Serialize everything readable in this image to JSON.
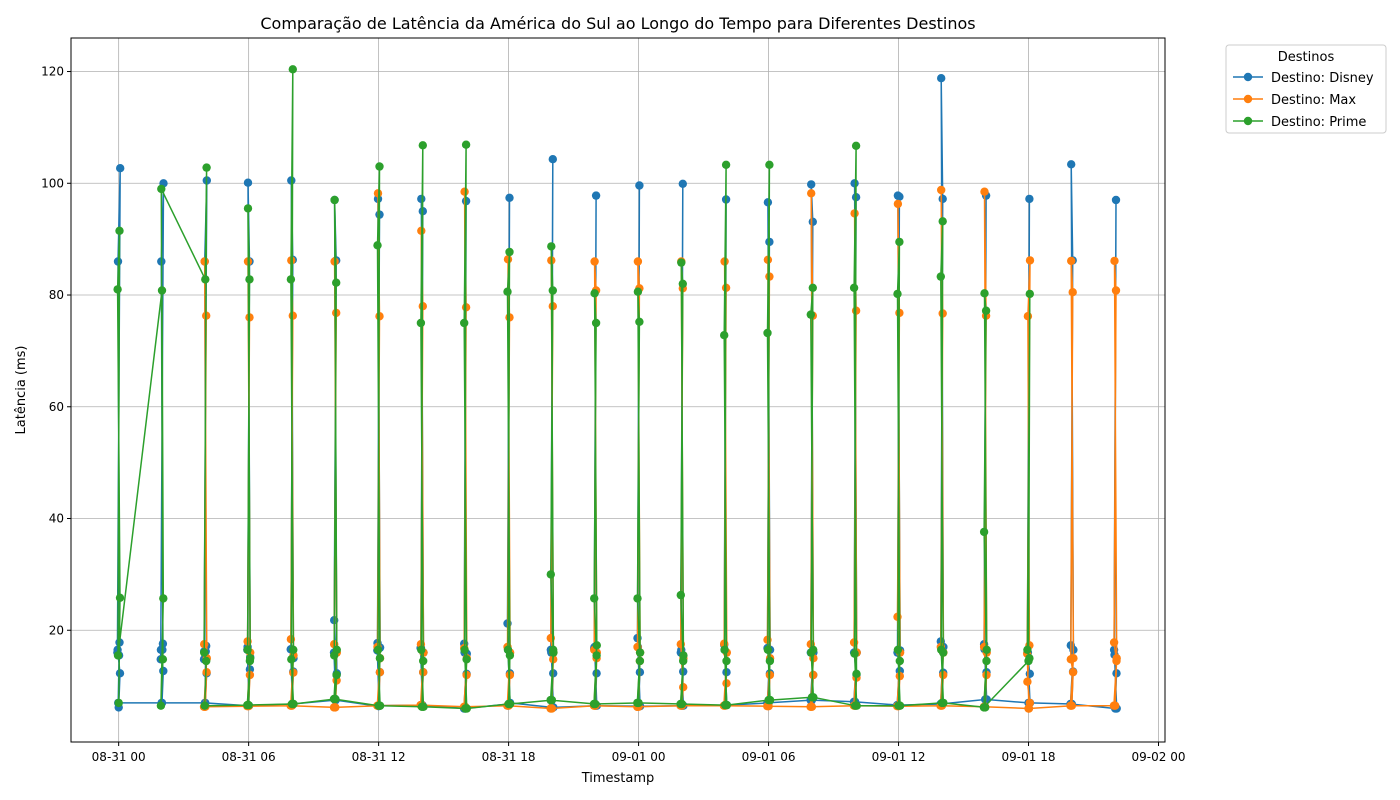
{
  "chart_data": {
    "type": "line",
    "title": "Comparação de Latência da América do Sul ao Longo do Tempo para Diferentes Destinos",
    "xlabel": "Timestamp",
    "ylabel": "Latência (ms)",
    "grid": true,
    "legend": {
      "title": "Destinos",
      "placement": "outside-top-right"
    },
    "x_ticks": [
      {
        "label": "08-31 00",
        "hours": 0
      },
      {
        "label": "08-31 06",
        "hours": 6
      },
      {
        "label": "08-31 12",
        "hours": 12
      },
      {
        "label": "08-31 18",
        "hours": 18
      },
      {
        "label": "09-01 00",
        "hours": 24
      },
      {
        "label": "09-01 06",
        "hours": 30
      },
      {
        "label": "09-01 12",
        "hours": 36
      },
      {
        "label": "09-01 18",
        "hours": 42
      },
      {
        "label": "09-02 00",
        "hours": 48
      }
    ],
    "xlim_hours": [
      -2.2,
      48.3
    ],
    "ylim": [
      0,
      126
    ],
    "y_ticks": [
      20,
      40,
      60,
      80,
      100,
      120
    ],
    "series": [
      {
        "name": "Destino: Disney",
        "color": "#1f77b4",
        "groups": [
          {
            "t": 0.0,
            "values": [
              6.2,
              12.3,
              16.5,
              17.8,
              86.0,
              102.7,
              16.0,
              15.5,
              7.0
            ]
          },
          {
            "t": 2.0,
            "values": [
              7.0,
              12.7,
              16.5,
              17.6,
              86.0,
              100.0,
              14.8,
              16.5,
              7.0
            ]
          },
          {
            "t": 4.0,
            "values": [
              7.0,
              12.3,
              16.2,
              17.2,
              86.0,
              100.5,
              14.8,
              16.2,
              7.0
            ]
          },
          {
            "t": 6.0,
            "values": [
              6.5,
              13.0,
              17.0,
              86.0,
              100.1,
              15.2,
              16.5,
              6.5
            ]
          },
          {
            "t": 8.0,
            "values": [
              6.8,
              12.6,
              16.6,
              86.3,
              100.5,
              15.0,
              16.6,
              6.8
            ]
          },
          {
            "t": 10.0,
            "values": [
              7.5,
              12.0,
              21.8,
              86.2,
              97.0,
              12.3,
              16.0,
              7.5
            ]
          },
          {
            "t": 12.0,
            "values": [
              6.4,
              12.5,
              17.7,
              94.4,
              97.2,
              16.9,
              16.4,
              6.5
            ]
          },
          {
            "t": 14.0,
            "values": [
              6.6,
              12.5,
              16.9,
              95.0,
              97.2,
              16.0,
              16.8,
              6.6
            ]
          },
          {
            "t": 16.0,
            "values": [
              6.0,
              12.2,
              17.6,
              96.8,
              16.0,
              15.8,
              6.0
            ]
          },
          {
            "t": 18.0,
            "values": [
              6.8,
              12.3,
              21.2,
              97.4,
              16.5,
              7.0
            ]
          },
          {
            "t": 20.0,
            "values": [
              6.2,
              12.3,
              16.5,
              104.3,
              16.0,
              6.2
            ]
          },
          {
            "t": 22.0,
            "values": [
              6.5,
              12.3,
              16.8,
              97.8,
              17.0,
              6.5
            ]
          },
          {
            "t": 24.0,
            "values": [
              6.4,
              12.5,
              18.6,
              99.6,
              17.0,
              6.4
            ]
          },
          {
            "t": 26.0,
            "values": [
              6.5,
              12.6,
              16.0,
              99.9,
              16.5,
              6.5
            ]
          },
          {
            "t": 28.0,
            "values": [
              6.6,
              12.5,
              17.4,
              97.1,
              16.5,
              6.6
            ]
          },
          {
            "t": 30.0,
            "values": [
              7.0,
              12.3,
              16.8,
              89.5,
              96.6,
              16.5,
              7.0
            ]
          },
          {
            "t": 32.0,
            "values": [
              7.5,
              12.0,
              16.0,
              93.1,
              99.8,
              16.0,
              7.5
            ]
          },
          {
            "t": 34.0,
            "values": [
              7.2,
              12.0,
              16.0,
              97.5,
              100.0,
              16.0,
              7.2
            ]
          },
          {
            "t": 36.0,
            "values": [
              6.6,
              12.7,
              16.0,
              97.6,
              97.8,
              16.4,
              6.6
            ]
          },
          {
            "t": 38.0,
            "values": [
              6.8,
              12.4,
              18.0,
              97.2,
              118.8,
              17.0,
              6.8
            ]
          },
          {
            "t": 40.0,
            "values": [
              7.6,
              12.5,
              17.5,
              97.8,
              16.6,
              7.6
            ]
          },
          {
            "t": 42.0,
            "values": [
              7.0,
              12.2,
              16.0,
              97.2,
              16.0,
              7.0
            ]
          },
          {
            "t": 44.0,
            "values": [
              6.8,
              12.6,
              17.3,
              86.2,
              103.4,
              16.5,
              6.8
            ]
          },
          {
            "t": 46.0,
            "values": [
              6.0,
              12.3,
              16.5,
              97.0,
              15.6,
              6.0
            ]
          }
        ]
      },
      {
        "name": "Destino: Max",
        "color": "#ff7f0e",
        "groups": [
          {
            "t": 4.0,
            "values": [
              6.3,
              12.5,
              17.5,
              76.3,
              86.0,
              15.0,
              6.3
            ]
          },
          {
            "t": 6.0,
            "values": [
              6.4,
              12.0,
              18.0,
              76.0,
              86.0,
              16.0,
              6.4
            ]
          },
          {
            "t": 8.0,
            "values": [
              6.5,
              12.4,
              18.4,
              76.3,
              86.2,
              15.5,
              6.5
            ]
          },
          {
            "t": 10.0,
            "values": [
              6.2,
              11.0,
              17.5,
              76.8,
              86.0,
              16.0,
              6.2
            ]
          },
          {
            "t": 12.0,
            "values": [
              6.5,
              12.5,
              17.0,
              76.2,
              98.2,
              15.0,
              6.5
            ]
          },
          {
            "t": 14.0,
            "values": [
              6.6,
              12.5,
              17.5,
              78.0,
              91.5,
              16.0,
              6.6
            ]
          },
          {
            "t": 16.0,
            "values": [
              6.3,
              12.0,
              16.8,
              77.8,
              98.5,
              15.0,
              6.3
            ]
          },
          {
            "t": 18.0,
            "values": [
              6.5,
              12.0,
              17.0,
              76.0,
              86.4,
              16.0,
              6.5
            ]
          },
          {
            "t": 20.0,
            "values": [
              6.0,
              14.8,
              18.6,
              78.0,
              86.2,
              16.0,
              6.0
            ]
          },
          {
            "t": 22.0,
            "values": [
              6.5,
              15.0,
              16.5,
              80.8,
              86.0,
              16.0,
              6.5
            ]
          },
          {
            "t": 24.0,
            "values": [
              6.3,
              14.5,
              17.0,
              81.2,
              86.0,
              16.0,
              6.3
            ]
          },
          {
            "t": 26.0,
            "values": [
              6.5,
              9.8,
              17.5,
              81.2,
              86.0,
              15.0,
              6.5
            ]
          },
          {
            "t": 28.0,
            "values": [
              6.5,
              10.5,
              17.6,
              81.3,
              86.0,
              16.0,
              6.5
            ]
          },
          {
            "t": 30.0,
            "values": [
              6.4,
              12.0,
              18.3,
              83.3,
              86.3,
              15.0,
              6.4
            ]
          },
          {
            "t": 32.0,
            "values": [
              6.3,
              12.0,
              17.5,
              76.3,
              98.2,
              15.0,
              6.3
            ]
          },
          {
            "t": 34.0,
            "values": [
              6.5,
              11.5,
              17.8,
              77.2,
              94.6,
              16.0,
              6.5
            ]
          },
          {
            "t": 36.0,
            "values": [
              6.4,
              11.8,
              22.4,
              76.8,
              96.3,
              16.0,
              6.4
            ]
          },
          {
            "t": 38.0,
            "values": [
              6.5,
              12.0,
              17.0,
              76.7,
              98.8,
              16.0,
              6.5
            ]
          },
          {
            "t": 40.0,
            "values": [
              6.3,
              12.0,
              17.0,
              76.3,
              98.5,
              16.0,
              6.3
            ]
          },
          {
            "t": 42.0,
            "values": [
              6.0,
              7.0,
              10.8,
              17.3,
              76.2,
              86.2,
              15.8,
              6.0
            ]
          },
          {
            "t": 44.0,
            "values": [
              6.5,
              12.5,
              14.8,
              80.5,
              86.1,
              15.0,
              6.5
            ]
          },
          {
            "t": 46.0,
            "values": [
              6.5,
              14.5,
              17.8,
              80.8,
              86.1,
              15.0,
              6.5
            ]
          }
        ]
      },
      {
        "name": "Destino: Prime",
        "color": "#2ca02c",
        "groups": [
          {
            "t": 0.0,
            "values": [
              7.0,
              25.8,
              81.0,
              91.5,
              15.5
            ]
          },
          {
            "t": 2.0,
            "values": [
              80.8,
              25.7,
              6.5,
              14.8,
              99.0
            ]
          },
          {
            "t": 4.0,
            "values": [
              82.8,
              102.8,
              16.0,
              14.5,
              6.5
            ]
          },
          {
            "t": 6.0,
            "values": [
              6.6,
              14.5,
              16.5,
              82.8,
              95.5,
              15.0,
              6.6
            ]
          },
          {
            "t": 8.0,
            "values": [
              6.8,
              16.5,
              82.8,
              120.4,
              14.8,
              6.8
            ]
          },
          {
            "t": 10.0,
            "values": [
              7.7,
              12.0,
              15.5,
              82.2,
              97.0,
              16.5,
              7.7
            ]
          },
          {
            "t": 12.0,
            "values": [
              6.5,
              15.0,
              88.9,
              103.0,
              16.5,
              6.5
            ]
          },
          {
            "t": 14.0,
            "values": [
              6.3,
              14.5,
              75.0,
              106.8,
              16.5,
              6.3
            ]
          },
          {
            "t": 16.0,
            "values": [
              6.0,
              14.8,
              75.0,
              106.9,
              16.5,
              6.0
            ]
          },
          {
            "t": 18.0,
            "values": [
              6.8,
              15.5,
              80.6,
              87.7,
              16.5,
              6.8
            ]
          },
          {
            "t": 20.0,
            "values": [
              7.5,
              16.5,
              30.0,
              80.8,
              88.7,
              16.0,
              7.5
            ]
          },
          {
            "t": 22.0,
            "values": [
              6.8,
              15.5,
              25.7,
              75.0,
              80.3,
              17.3,
              6.8
            ]
          },
          {
            "t": 24.0,
            "values": [
              7.0,
              14.5,
              25.7,
              75.2,
              80.6,
              16.0,
              7.0
            ]
          },
          {
            "t": 26.0,
            "values": [
              6.8,
              14.5,
              26.3,
              82.0,
              85.8,
              15.5,
              6.8
            ]
          },
          {
            "t": 28.0,
            "values": [
              6.6,
              14.5,
              72.8,
              103.3,
              16.5,
              6.6
            ]
          },
          {
            "t": 30.0,
            "values": [
              7.5,
              14.5,
              73.2,
              103.3,
              16.5,
              7.5
            ]
          },
          {
            "t": 32.0,
            "values": [
              8.0,
              16.5,
              76.5,
              81.3,
              16.0,
              8.0
            ]
          },
          {
            "t": 34.0,
            "values": [
              6.5,
              12.2,
              81.3,
              106.7,
              15.8,
              6.5
            ]
          },
          {
            "t": 36.0,
            "values": [
              6.5,
              14.5,
              80.2,
              89.5,
              16.5,
              6.5
            ]
          },
          {
            "t": 38.0,
            "values": [
              7.0,
              16.0,
              83.3,
              93.2,
              16.5,
              7.0
            ]
          },
          {
            "t": 40.0,
            "values": [
              6.2,
              14.5,
              37.6,
              77.2,
              80.3,
              16.5,
              6.2
            ]
          },
          {
            "t": 42.0,
            "values": [
              14.5,
              80.2,
              16.5,
              15.0
            ]
          }
        ]
      }
    ]
  }
}
